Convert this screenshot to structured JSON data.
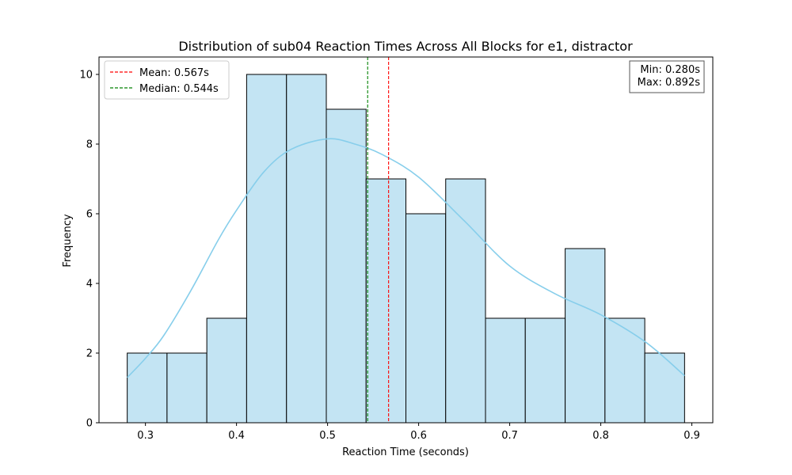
{
  "chart_data": {
    "type": "bar",
    "title": "Distribution of sub04 Reaction Times Across All Blocks for e1, distractor",
    "xlabel": "Reaction Time (seconds)",
    "ylabel": "Frequency",
    "xlim": [
      0.249,
      0.923
    ],
    "ylim": [
      0,
      10.5
    ],
    "xticks": [
      0.3,
      0.4,
      0.5,
      0.6,
      0.7,
      0.8,
      0.9
    ],
    "xtick_labels": [
      "0.3",
      "0.4",
      "0.5",
      "0.6",
      "0.7",
      "0.8",
      "0.9"
    ],
    "yticks": [
      0,
      2,
      4,
      6,
      8,
      10
    ],
    "ytick_labels": [
      "0",
      "2",
      "4",
      "6",
      "8",
      "10"
    ],
    "bins": {
      "edges": [
        0.28,
        0.3237,
        0.3674,
        0.4111,
        0.4549,
        0.4986,
        0.5423,
        0.586,
        0.6297,
        0.6734,
        0.7171,
        0.7609,
        0.8046,
        0.8483,
        0.892
      ],
      "counts": [
        2,
        2,
        3,
        10,
        10,
        9,
        7,
        6,
        7,
        3,
        3,
        5,
        3,
        2
      ],
      "fill_color": "#c3e4f3",
      "edge_color": "#000000"
    },
    "kde": {
      "color": "#87ceeb",
      "x": [
        0.28,
        0.3,
        0.32,
        0.35,
        0.38,
        0.4,
        0.43,
        0.46,
        0.5,
        0.53,
        0.56,
        0.6,
        0.65,
        0.7,
        0.75,
        0.8,
        0.85,
        0.892
      ],
      "y": [
        1.3,
        1.85,
        2.5,
        3.8,
        5.25,
        6.1,
        7.2,
        7.85,
        8.15,
        8.0,
        7.7,
        7.05,
        5.8,
        4.5,
        3.7,
        3.1,
        2.3,
        1.35
      ]
    },
    "reference_lines": [
      {
        "name": "Mean",
        "value": 0.567,
        "color": "#ff0000",
        "label": "Mean: 0.567s"
      },
      {
        "name": "Median",
        "value": 0.544,
        "color": "#008000",
        "label": "Median: 0.544s"
      }
    ],
    "legend": {
      "position": "top-left",
      "entries": [
        {
          "label": "Mean: 0.567s",
          "color": "#ff0000"
        },
        {
          "label": "Median: 0.544s",
          "color": "#008000"
        }
      ]
    },
    "stats_box": {
      "position": "top-right",
      "lines": [
        "Min: 0.280s",
        "Max: 0.892s"
      ]
    },
    "grid": false
  }
}
